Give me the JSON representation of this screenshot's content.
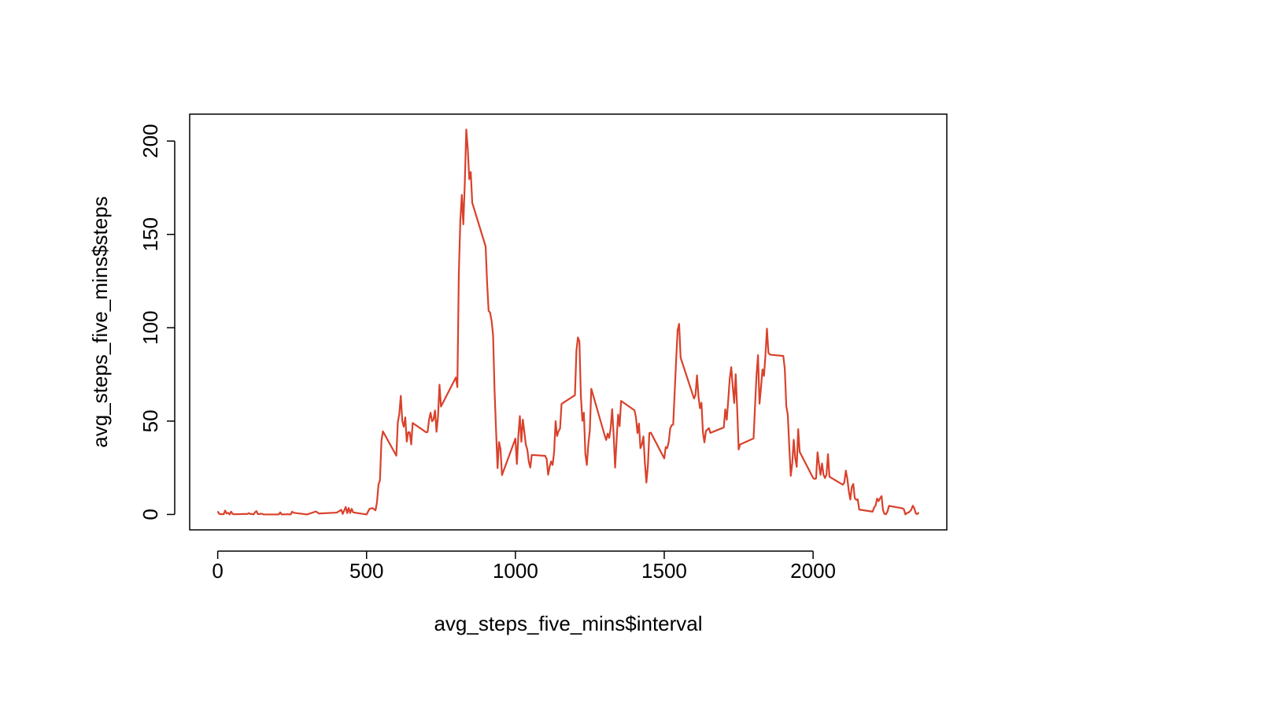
{
  "chart_data": {
    "type": "line",
    "x_label": "avg_steps_five_mins$interval",
    "y_label": "avg_steps_five_mins$steps",
    "color": "#d9412b",
    "xlim": [
      -94.2,
      2449.2
    ],
    "ylim": [
      -8.25,
      214.4
    ],
    "xticks": [
      0,
      500,
      1000,
      1500,
      2000
    ],
    "yticks": [
      0,
      50,
      100,
      150,
      200
    ],
    "x": [
      0,
      5,
      10,
      15,
      20,
      25,
      30,
      35,
      40,
      45,
      50,
      55,
      100,
      105,
      110,
      115,
      120,
      125,
      130,
      135,
      140,
      145,
      150,
      155,
      200,
      205,
      210,
      215,
      220,
      225,
      230,
      235,
      240,
      245,
      250,
      255,
      300,
      330,
      340,
      400,
      415,
      420,
      430,
      435,
      440,
      445,
      450,
      455,
      500,
      510,
      520,
      530,
      535,
      540,
      545,
      550,
      555,
      600,
      605,
      610,
      615,
      620,
      625,
      630,
      635,
      640,
      645,
      650,
      655,
      700,
      705,
      710,
      715,
      720,
      725,
      730,
      735,
      740,
      745,
      750,
      800,
      805,
      810,
      815,
      820,
      825,
      830,
      835,
      840,
      845,
      850,
      855,
      900,
      905,
      910,
      915,
      920,
      925,
      930,
      935,
      940,
      945,
      950,
      955,
      1000,
      1005,
      1010,
      1015,
      1020,
      1025,
      1030,
      1035,
      1040,
      1045,
      1050,
      1055,
      1100,
      1105,
      1110,
      1115,
      1120,
      1125,
      1130,
      1135,
      1140,
      1145,
      1150,
      1155,
      1200,
      1205,
      1210,
      1215,
      1220,
      1225,
      1230,
      1235,
      1240,
      1245,
      1250,
      1255,
      1300,
      1305,
      1310,
      1315,
      1320,
      1325,
      1330,
      1335,
      1340,
      1345,
      1350,
      1355,
      1400,
      1405,
      1410,
      1415,
      1420,
      1425,
      1430,
      1435,
      1440,
      1445,
      1450,
      1455,
      1500,
      1505,
      1510,
      1515,
      1520,
      1525,
      1530,
      1535,
      1540,
      1545,
      1550,
      1555,
      1600,
      1605,
      1610,
      1615,
      1620,
      1625,
      1630,
      1635,
      1640,
      1645,
      1650,
      1655,
      1700,
      1705,
      1710,
      1715,
      1720,
      1725,
      1730,
      1735,
      1740,
      1745,
      1750,
      1755,
      1800,
      1805,
      1810,
      1815,
      1820,
      1825,
      1830,
      1835,
      1840,
      1845,
      1850,
      1855,
      1900,
      1905,
      1910,
      1915,
      1920,
      1925,
      1930,
      1935,
      1940,
      1945,
      1950,
      1955,
      2000,
      2005,
      2010,
      2015,
      2020,
      2025,
      2030,
      2035,
      2040,
      2045,
      2050,
      2055,
      2100,
      2105,
      2110,
      2115,
      2120,
      2125,
      2130,
      2135,
      2140,
      2145,
      2150,
      2155,
      2200,
      2205,
      2210,
      2215,
      2220,
      2225,
      2230,
      2235,
      2240,
      2245,
      2250,
      2255,
      2300,
      2305,
      2310,
      2315,
      2320,
      2325,
      2330,
      2335,
      2340,
      2345,
      2350,
      2355
    ],
    "values": [
      1.7,
      0.3,
      0.1,
      0.2,
      0.1,
      2.1,
      0.5,
      0.9,
      0,
      1.5,
      0.3,
      0.1,
      0.3,
      0.7,
      0.2,
      0.3,
      0,
      1.1,
      1.8,
      0.2,
      0.2,
      0.4,
      0.3,
      0,
      0,
      0,
      1.1,
      0,
      0,
      0.1,
      0,
      0.2,
      0,
      0,
      1.5,
      0.9,
      0,
      1.6,
      0.5,
      1,
      2.5,
      0.3,
      4,
      0.7,
      3.5,
      0.8,
      3,
      1.1,
      0,
      3,
      3.4,
      2.2,
      6.5,
      16,
      18.3,
      39.5,
      44.5,
      31.5,
      49.3,
      53.8,
      63.5,
      50,
      47,
      52,
      39,
      44,
      44,
      37.5,
      49,
      44,
      44.2,
      50.8,
      54.5,
      49.9,
      50.9,
      55.7,
      44.3,
      52.3,
      69.5,
      57.8,
      73.4,
      68.2,
      129.4,
      157.5,
      171.2,
      155.4,
      177.3,
      206.2,
      195.9,
      179.6,
      183.4,
      167,
      143.5,
      124,
      109.1,
      108.1,
      103.7,
      96,
      66.2,
      45.2,
      24.8,
      38.8,
      35,
      21.1,
      40.6,
      27,
      42.4,
      52.7,
      38.9,
      50.8,
      44.3,
      37.4,
      34.7,
      28.3,
      25.1,
      31.9,
      31.4,
      29.7,
      21.3,
      25.5,
      28.4,
      26.5,
      33.4,
      50,
      42,
      44.6,
      46,
      59.2,
      63.9,
      87.7,
      94.8,
      92.8,
      63.4,
      50.2,
      54.5,
      32.4,
      26.5,
      37.7,
      45.1,
      67.3,
      42.3,
      39.9,
      43.3,
      41,
      46.2,
      56.4,
      42.8,
      25.1,
      40,
      53.5,
      47.3,
      60.8,
      55.8,
      52,
      43.6,
      48.7,
      35.5,
      37.5,
      41.8,
      27.5,
      17.1,
      26.1,
      43.6,
      43.8,
      30,
      36.1,
      35.5,
      38.8,
      46,
      47.8,
      48.1,
      65.3,
      82.9,
      98.7,
      102.1,
      84,
      62.1,
      64.1,
      74.5,
      63.2,
      56.9,
      59.8,
      43.9,
      38.6,
      44.7,
      45.5,
      46.2,
      43.7,
      46.6,
      56.3,
      50.7,
      61.2,
      72.7,
      78.9,
      68.9,
      59.7,
      75.1,
      56.5,
      34.8,
      37.5,
      40.7,
      58,
      74.7,
      85.3,
      59.3,
      67.8,
      77.7,
      74.2,
      85.3,
      99.5,
      86.6,
      85.6,
      84.9,
      77.8,
      58,
      53.4,
      36.3,
      20.7,
      27.4,
      40,
      30.2,
      25.5,
      45.7,
      33.5,
      19.6,
      19,
      19.3,
      33.3,
      26.8,
      21.2,
      27.3,
      21.3,
      19.5,
      21.3,
      32.3,
      20.2,
      15.9,
      17.2,
      23.5,
      19.2,
      12.5,
      8,
      14.7,
      16.3,
      8.7,
      7.8,
      8.1,
      2.6,
      1.5,
      3.7,
      4.8,
      8.5,
      7.1,
      8.7,
      9.8,
      2.2,
      0.3,
      0.1,
      1.6,
      4.6,
      3.3,
      2.8,
      0,
      0.8,
      1,
      1.6,
      2.6,
      4.7,
      3.3,
      0.6,
      0.2,
      1.1
    ]
  }
}
